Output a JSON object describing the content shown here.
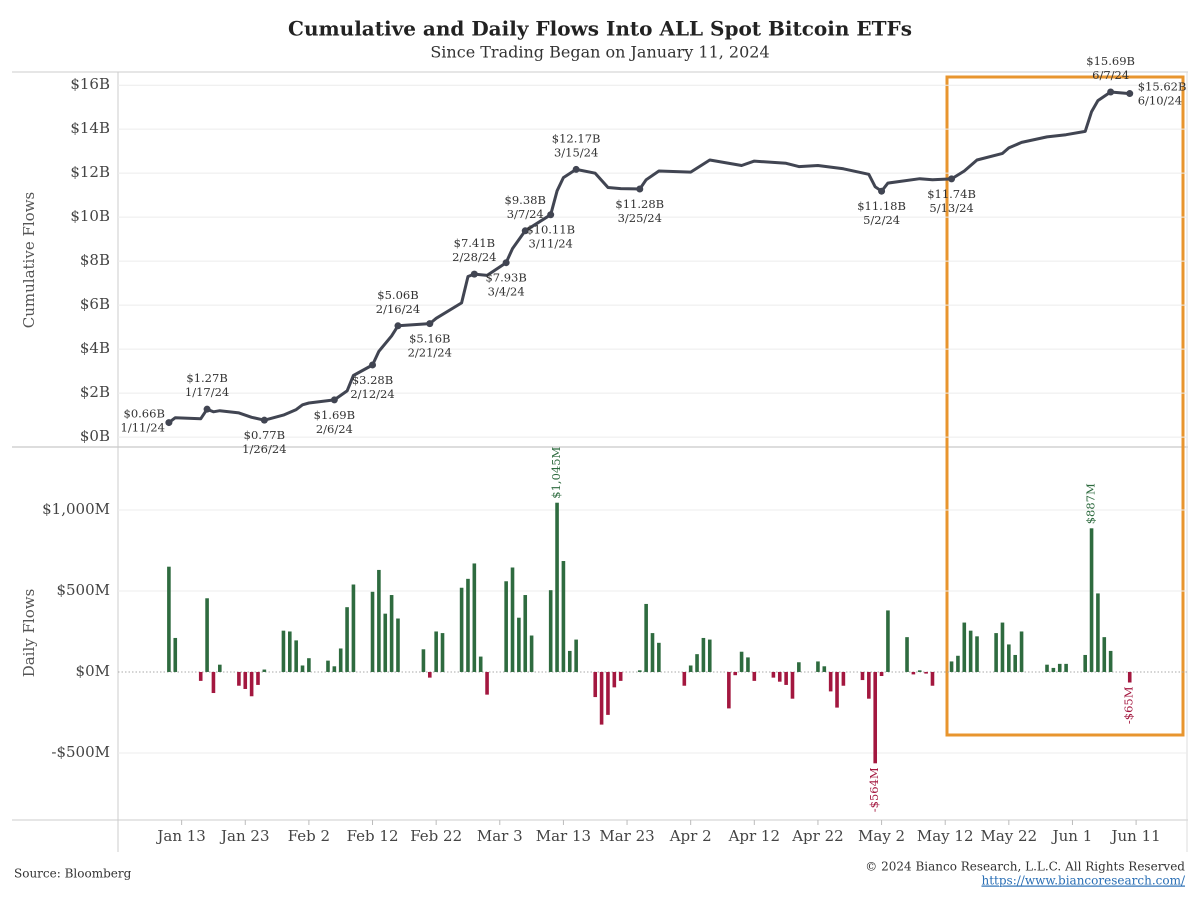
{
  "chart_data": [
    {
      "type": "line",
      "title": "Cumulative and Daily Flows Into ALL Spot Bitcoin ETFs",
      "subtitle": "Since Trading Began on January 11, 2024",
      "y_label": "Cumulative Flows",
      "xlim": [
        "2024-01-03",
        "2024-06-19"
      ],
      "ylim": [
        -0.45,
        16.6
      ],
      "yticks": [
        {
          "value": 0,
          "label": "$0B"
        },
        {
          "value": 2,
          "label": "$2B"
        },
        {
          "value": 4,
          "label": "$4B"
        },
        {
          "value": 6,
          "label": "$6B"
        },
        {
          "value": 8,
          "label": "$8B"
        },
        {
          "value": 10,
          "label": "$10B"
        },
        {
          "value": 12,
          "label": "$12B"
        },
        {
          "value": 14,
          "label": "$14B"
        },
        {
          "value": 16,
          "label": "$16B"
        }
      ],
      "grid": true,
      "color": "#414552",
      "x": [
        "2024-01-11",
        "2024-01-12",
        "2024-01-16",
        "2024-01-17",
        "2024-01-18",
        "2024-01-19",
        "2024-01-22",
        "2024-01-24",
        "2024-01-26",
        "2024-01-29",
        "2024-01-31",
        "2024-02-01",
        "2024-02-02",
        "2024-02-06",
        "2024-02-08",
        "2024-02-09",
        "2024-02-12",
        "2024-02-13",
        "2024-02-15",
        "2024-02-16",
        "2024-02-21",
        "2024-02-22",
        "2024-02-26",
        "2024-02-27",
        "2024-02-28",
        "2024-03-01",
        "2024-03-04",
        "2024-03-05",
        "2024-03-07",
        "2024-03-11",
        "2024-03-12",
        "2024-03-13",
        "2024-03-15",
        "2024-03-18",
        "2024-03-20",
        "2024-03-22",
        "2024-03-25",
        "2024-03-26",
        "2024-03-28",
        "2024-04-02",
        "2024-04-05",
        "2024-04-10",
        "2024-04-12",
        "2024-04-17",
        "2024-04-19",
        "2024-04-22",
        "2024-04-26",
        "2024-04-30",
        "2024-05-01",
        "2024-05-02",
        "2024-05-03",
        "2024-05-08",
        "2024-05-10",
        "2024-05-13",
        "2024-05-15",
        "2024-05-17",
        "2024-05-21",
        "2024-05-22",
        "2024-05-24",
        "2024-05-28",
        "2024-05-31",
        "2024-06-03",
        "2024-06-04",
        "2024-06-05",
        "2024-06-07",
        "2024-06-10"
      ],
      "values": [
        0.66,
        0.88,
        0.83,
        1.27,
        1.15,
        1.2,
        1.1,
        0.9,
        0.77,
        1.0,
        1.25,
        1.47,
        1.55,
        1.69,
        2.1,
        2.8,
        3.28,
        3.9,
        4.6,
        5.06,
        5.16,
        5.4,
        6.1,
        7.3,
        7.41,
        7.35,
        7.93,
        8.57,
        9.38,
        10.11,
        11.2,
        11.8,
        12.17,
        12.0,
        11.35,
        11.3,
        11.28,
        11.7,
        12.1,
        12.05,
        12.6,
        12.35,
        12.55,
        12.45,
        12.3,
        12.35,
        12.2,
        11.95,
        11.38,
        11.18,
        11.55,
        11.75,
        11.7,
        11.74,
        12.1,
        12.6,
        12.9,
        13.15,
        13.4,
        13.65,
        13.75,
        13.9,
        14.8,
        15.3,
        15.69,
        15.62
      ],
      "value_labels": [
        "$0.66B",
        null,
        null,
        "$1.27B",
        null,
        null,
        null,
        null,
        "$0.77B",
        null,
        null,
        null,
        null,
        "$1.69B",
        null,
        null,
        "$3.28B",
        null,
        null,
        "$5.06B",
        "$5.16B",
        null,
        null,
        null,
        "$7.41B",
        null,
        "$7.93B",
        null,
        "$9.38B",
        "$10.11B",
        null,
        null,
        "$12.17B",
        null,
        null,
        null,
        "$11.28B",
        null,
        null,
        null,
        null,
        null,
        null,
        null,
        null,
        null,
        null,
        null,
        null,
        "$11.18B",
        null,
        null,
        null,
        "$11.74B",
        null,
        null,
        null,
        null,
        null,
        null,
        null,
        null,
        null,
        null,
        "$15.69B",
        "$15.62B"
      ],
      "date_labels": [
        "1/11/24",
        null,
        null,
        "1/17/24",
        null,
        null,
        null,
        null,
        "1/26/24",
        null,
        null,
        null,
        null,
        "2/6/24",
        null,
        null,
        "2/12/24",
        null,
        null,
        "2/16/24",
        "2/21/24",
        null,
        null,
        null,
        "2/28/24",
        null,
        "3/4/24",
        null,
        "3/7/24",
        "3/11/24",
        null,
        null,
        "3/15/24",
        null,
        null,
        null,
        "3/25/24",
        null,
        null,
        null,
        null,
        null,
        null,
        null,
        null,
        null,
        null,
        null,
        null,
        "5/2/24",
        null,
        null,
        null,
        "5/13/24",
        null,
        null,
        null,
        null,
        null,
        null,
        null,
        null,
        null,
        null,
        "6/7/24",
        "6/10/24"
      ]
    },
    {
      "type": "bar",
      "y_label": "Daily Flows",
      "xlim": [
        "2024-01-03",
        "2024-06-19"
      ],
      "xticks": [
        {
          "value": "2024-01-13",
          "label": "Jan 13"
        },
        {
          "value": "2024-01-23",
          "label": "Jan 23"
        },
        {
          "value": "2024-02-02",
          "label": "Feb 2"
        },
        {
          "value": "2024-02-12",
          "label": "Feb 12"
        },
        {
          "value": "2024-02-22",
          "label": "Feb 22"
        },
        {
          "value": "2024-03-03",
          "label": "Mar 3"
        },
        {
          "value": "2024-03-13",
          "label": "Mar 13"
        },
        {
          "value": "2024-03-23",
          "label": "Mar 23"
        },
        {
          "value": "2024-04-02",
          "label": "Apr 2"
        },
        {
          "value": "2024-04-12",
          "label": "Apr 12"
        },
        {
          "value": "2024-04-22",
          "label": "Apr 22"
        },
        {
          "value": "2024-05-02",
          "label": "May 2"
        },
        {
          "value": "2024-05-12",
          "label": "May 12"
        },
        {
          "value": "2024-05-22",
          "label": "May 22"
        },
        {
          "value": "2024-06-01",
          "label": "Jun 1"
        },
        {
          "value": "2024-06-11",
          "label": "Jun 11"
        }
      ],
      "ylim": [
        -914,
        1389
      ],
      "yticks": [
        {
          "value": -500,
          "label": "-$500M"
        },
        {
          "value": 0,
          "label": "$0M"
        },
        {
          "value": 500,
          "label": "$500M"
        },
        {
          "value": 1000,
          "label": "$1,000M"
        }
      ],
      "grid": true,
      "positive_color": "#2e6b3f",
      "negative_color": "#a3173f",
      "x": [
        "2024-01-11",
        "2024-01-12",
        "2024-01-16",
        "2024-01-17",
        "2024-01-18",
        "2024-01-19",
        "2024-01-22",
        "2024-01-23",
        "2024-01-24",
        "2024-01-25",
        "2024-01-26",
        "2024-01-29",
        "2024-01-30",
        "2024-01-31",
        "2024-02-01",
        "2024-02-02",
        "2024-02-05",
        "2024-02-06",
        "2024-02-07",
        "2024-02-08",
        "2024-02-09",
        "2024-02-12",
        "2024-02-13",
        "2024-02-14",
        "2024-02-15",
        "2024-02-16",
        "2024-02-20",
        "2024-02-21",
        "2024-02-22",
        "2024-02-23",
        "2024-02-26",
        "2024-02-27",
        "2024-02-28",
        "2024-02-29",
        "2024-03-01",
        "2024-03-04",
        "2024-03-05",
        "2024-03-06",
        "2024-03-07",
        "2024-03-08",
        "2024-03-11",
        "2024-03-12",
        "2024-03-13",
        "2024-03-14",
        "2024-03-15",
        "2024-03-18",
        "2024-03-19",
        "2024-03-20",
        "2024-03-21",
        "2024-03-22",
        "2024-03-25",
        "2024-03-26",
        "2024-03-27",
        "2024-03-28",
        "2024-04-01",
        "2024-04-02",
        "2024-04-03",
        "2024-04-04",
        "2024-04-05",
        "2024-04-08",
        "2024-04-09",
        "2024-04-10",
        "2024-04-11",
        "2024-04-12",
        "2024-04-15",
        "2024-04-16",
        "2024-04-17",
        "2024-04-18",
        "2024-04-19",
        "2024-04-22",
        "2024-04-23",
        "2024-04-24",
        "2024-04-25",
        "2024-04-26",
        "2024-04-29",
        "2024-04-30",
        "2024-05-01",
        "2024-05-02",
        "2024-05-03",
        "2024-05-06",
        "2024-05-07",
        "2024-05-08",
        "2024-05-09",
        "2024-05-10",
        "2024-05-13",
        "2024-05-14",
        "2024-05-15",
        "2024-05-16",
        "2024-05-17",
        "2024-05-20",
        "2024-05-21",
        "2024-05-22",
        "2024-05-23",
        "2024-05-24",
        "2024-05-28",
        "2024-05-29",
        "2024-05-30",
        "2024-05-31",
        "2024-06-03",
        "2024-06-04",
        "2024-06-05",
        "2024-06-06",
        "2024-06-07",
        "2024-06-10"
      ],
      "values": [
        650,
        210,
        -55,
        455,
        -130,
        45,
        -85,
        -105,
        -150,
        -80,
        15,
        255,
        250,
        195,
        40,
        85,
        70,
        35,
        145,
        400,
        540,
        495,
        630,
        360,
        475,
        330,
        140,
        -35,
        250,
        240,
        520,
        575,
        670,
        95,
        -140,
        560,
        645,
        335,
        475,
        225,
        505,
        1045,
        685,
        130,
        200,
        -155,
        -325,
        -265,
        -95,
        -55,
        10,
        420,
        240,
        180,
        -85,
        40,
        110,
        210,
        200,
        -225,
        -20,
        125,
        90,
        -55,
        -35,
        -60,
        -80,
        -165,
        60,
        65,
        35,
        -120,
        -220,
        -85,
        -50,
        -165,
        -564,
        -25,
        380,
        215,
        -15,
        10,
        -10,
        -85,
        65,
        100,
        305,
        255,
        220,
        240,
        305,
        170,
        105,
        250,
        45,
        25,
        50,
        50,
        105,
        887,
        485,
        215,
        130,
        -65
      ],
      "value_labels": [
        null,
        null,
        null,
        null,
        null,
        null,
        null,
        null,
        null,
        null,
        null,
        null,
        null,
        null,
        null,
        null,
        null,
        null,
        null,
        null,
        null,
        null,
        null,
        null,
        null,
        null,
        null,
        null,
        null,
        null,
        null,
        null,
        null,
        null,
        null,
        null,
        null,
        null,
        null,
        null,
        null,
        "$1,045M",
        null,
        null,
        null,
        null,
        null,
        null,
        null,
        null,
        null,
        null,
        null,
        null,
        null,
        null,
        null,
        null,
        null,
        null,
        null,
        null,
        null,
        null,
        null,
        null,
        null,
        null,
        null,
        null,
        null,
        null,
        null,
        null,
        null,
        null,
        "-$564M",
        null,
        null,
        null,
        null,
        null,
        null,
        null,
        null,
        null,
        null,
        null,
        null,
        null,
        null,
        null,
        null,
        null,
        null,
        null,
        null,
        null,
        null,
        "$887M",
        null,
        null,
        null,
        "-$65M"
      ]
    }
  ],
  "footer": {
    "source": "Source: Bloomberg",
    "copyright": "© 2024 Bianco Research, L.L.C. All Rights Reserved",
    "url": "https://www.biancoresearch.com/"
  }
}
